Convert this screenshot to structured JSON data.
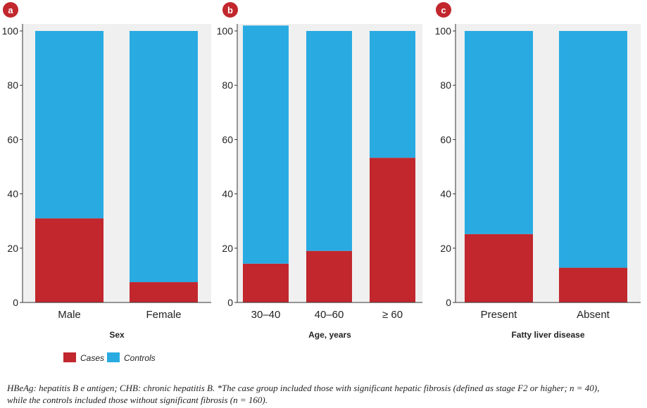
{
  "colors": {
    "cases": "#c1272d",
    "controls": "#29abe2",
    "badge": "#c1272d",
    "grid": "#f0f0f0",
    "axis": "#333333"
  },
  "legend": [
    {
      "label": "Cases",
      "color": "#c1272d"
    },
    {
      "label": "Controls",
      "color": "#29abe2"
    }
  ],
  "chart_data": [
    {
      "panel": "a",
      "type": "bar",
      "stacked": true,
      "xlabel": "Sex",
      "ylabel": "",
      "ylim": [
        0,
        100
      ],
      "yticks": [
        0,
        20,
        40,
        60,
        80,
        100
      ],
      "categories": [
        "Male",
        "Female"
      ],
      "series": [
        {
          "name": "Cases",
          "values": [
            31,
            7.5
          ]
        },
        {
          "name": "Controls",
          "values": [
            69,
            92.5
          ]
        }
      ]
    },
    {
      "panel": "b",
      "type": "bar",
      "stacked": true,
      "xlabel": "Age, years",
      "ylabel": "",
      "ylim": [
        0,
        100
      ],
      "yticks": [
        0,
        20,
        40,
        60,
        80,
        100
      ],
      "categories": [
        "30–40",
        "40–60",
        "≥ 60"
      ],
      "series": [
        {
          "name": "Cases",
          "values": [
            14.3,
            19,
            53.3
          ]
        },
        {
          "name": "Controls",
          "values": [
            87.7,
            81,
            46.7
          ]
        }
      ]
    },
    {
      "panel": "c",
      "type": "bar",
      "stacked": true,
      "xlabel": "Fatty liver disease",
      "ylabel": "",
      "ylim": [
        0,
        100
      ],
      "yticks": [
        0,
        20,
        40,
        60,
        80,
        100
      ],
      "categories": [
        "Present",
        "Absent"
      ],
      "series": [
        {
          "name": "Cases",
          "values": [
            25.2,
            12.8
          ]
        },
        {
          "name": "Controls",
          "values": [
            74.8,
            87.2
          ]
        }
      ]
    }
  ],
  "footnote": {
    "line1": "HBeAg: hepatitis B e antigen; CHB: chronic hepatitis B. *The case group included those with significant hepatic fibrosis (defined as stage F2 or higher; n = 40),",
    "line2": "while the controls included those without significant fibrosis (n = 160)."
  }
}
